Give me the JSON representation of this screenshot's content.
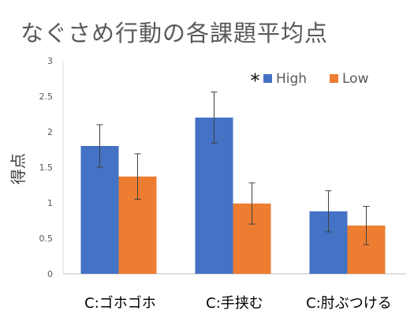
{
  "chart_data": {
    "type": "bar",
    "title": "なぐさめ行動の各課題平均点",
    "ylabel": "得点",
    "xlabel": "",
    "ylim": [
      0,
      3
    ],
    "yticks": [
      "0",
      "0.5",
      "1",
      "1.5",
      "2",
      "2.5",
      "3"
    ],
    "categories": [
      "C:ゴホゴホ",
      "C:手挟む",
      "C:肘ぶつける"
    ],
    "series": [
      {
        "name": "High",
        "color": "#4472C4",
        "values": [
          1.8,
          2.2,
          0.88
        ],
        "error": [
          0.3,
          0.36,
          0.29
        ]
      },
      {
        "name": "Low",
        "color": "#ED7D31",
        "values": [
          1.37,
          0.99,
          0.68
        ],
        "error": [
          0.32,
          0.29,
          0.27
        ]
      }
    ],
    "legend_position": "top-right",
    "grid": false,
    "annotations": [
      {
        "text": "*",
        "category": "C:手挟む"
      }
    ]
  }
}
